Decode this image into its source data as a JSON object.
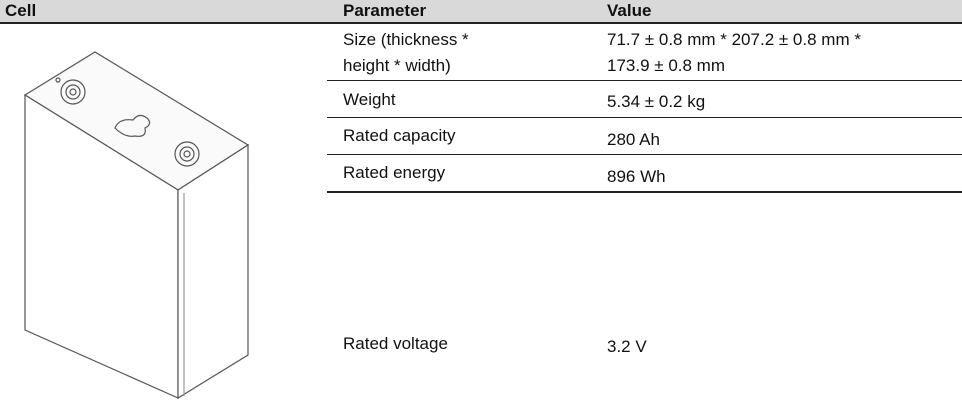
{
  "table": {
    "header": [
      "Cell",
      "Parameter",
      "Value"
    ],
    "rows": [
      {
        "parameter": [
          "Size (thickness *",
          "height * width)"
        ],
        "value": [
          "71.7 ± 0.8 mm * 207.2 ± 0.8 mm *",
          "173.9 ± 0.8 mm"
        ]
      },
      {
        "parameter": [
          "Weight"
        ],
        "value": [
          "5.34 ± 0.2 kg"
        ]
      },
      {
        "parameter": [
          "Rated capacity"
        ],
        "value": [
          "280 Ah"
        ]
      },
      {
        "parameter": [
          "Rated energy"
        ],
        "value": [
          "896 Wh"
        ]
      },
      {
        "parameter": [
          "Rated voltage"
        ],
        "value": [
          "3.2 V"
        ]
      }
    ]
  }
}
